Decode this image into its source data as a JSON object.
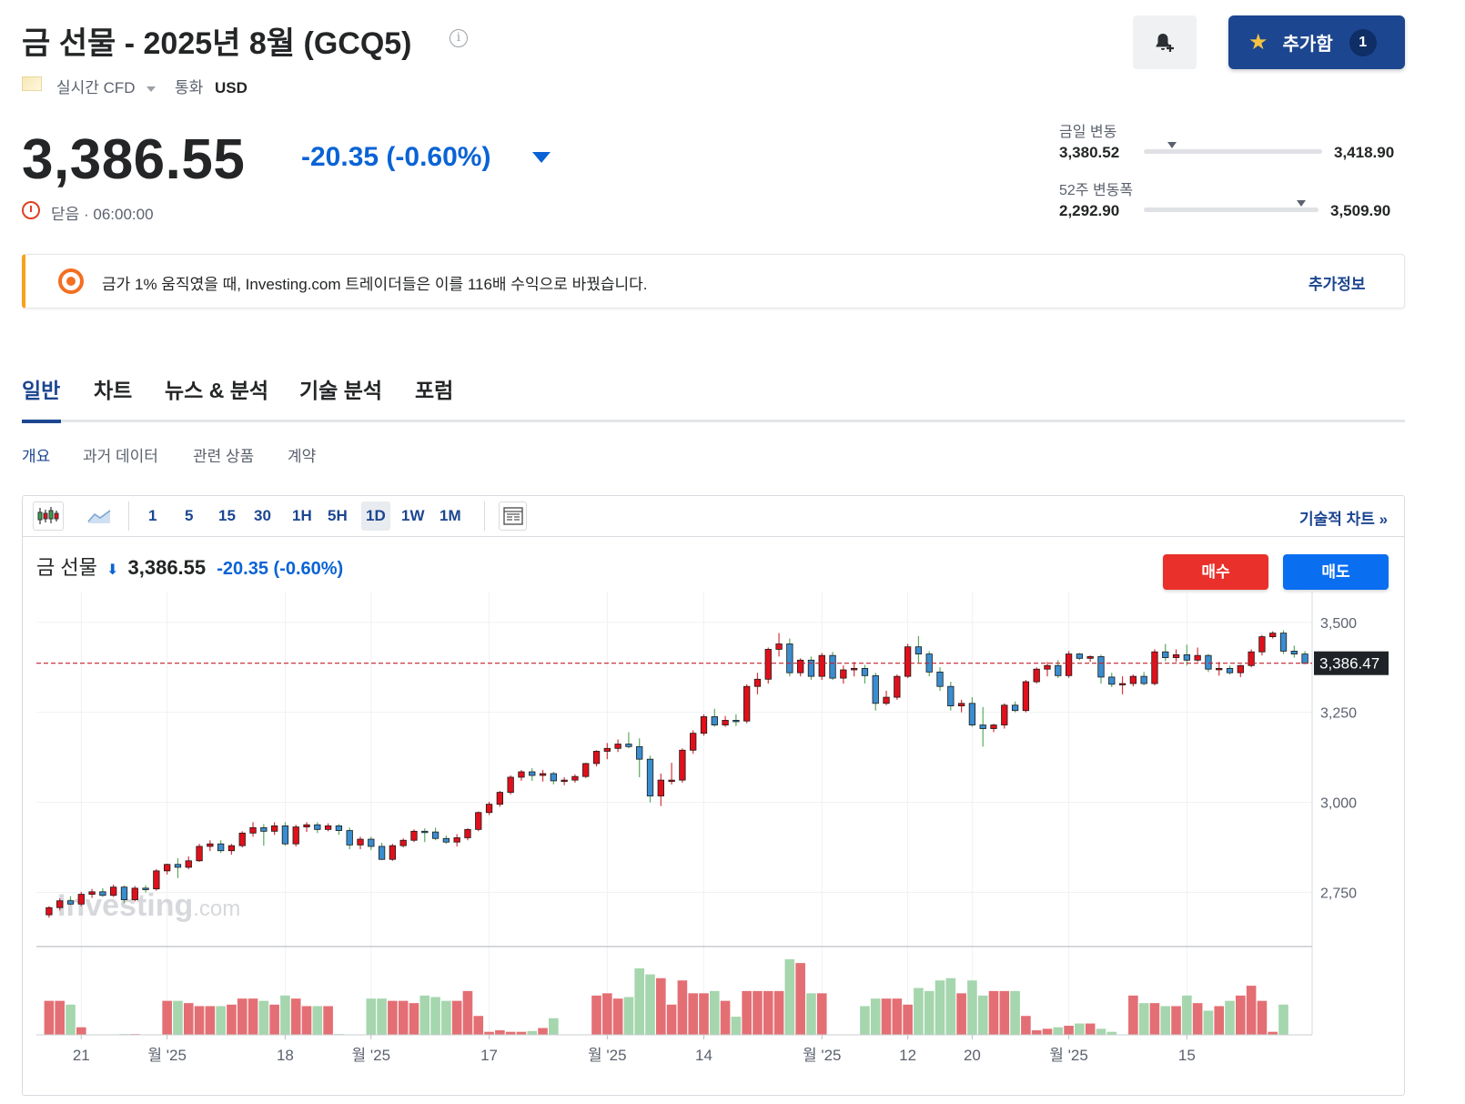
{
  "header": {
    "title": "금 선물 - 2025년 8월 (GCQ5)",
    "source": "실시간 CFD",
    "currency_label": "통화",
    "currency": "USD",
    "add_label": "추가함",
    "add_count": "1"
  },
  "quote": {
    "price": "3,386.55",
    "change": "-20.35 (-0.60%)",
    "status": "닫음 · 06:00:00",
    "direction": "down",
    "day_range": {
      "label": "금일 변동",
      "low": "3,380.52",
      "high": "3,418.90",
      "marker_fraction": 0.16
    },
    "week52_range": {
      "label": "52주 변동폭",
      "low": "2,292.90",
      "high": "3,509.90",
      "marker_fraction": 0.9
    }
  },
  "promo": {
    "text": "금가 1% 움직였을 때, Investing.com 트레이더들은 이를 116배 수익으로 바꿨습니다.",
    "link": "추가정보"
  },
  "tabs": [
    "일반",
    "차트",
    "뉴스 & 분석",
    "기술 분석",
    "포럼"
  ],
  "active_tab": "일반",
  "subtabs": [
    "개요",
    "과거 데이터",
    "관련 상품",
    "계약"
  ],
  "active_subtab": "개요",
  "chart_toolbar": {
    "timeframes": [
      "1",
      "5",
      "15",
      "30",
      "1H",
      "5H",
      "1D",
      "1W",
      "1M"
    ],
    "active_timeframe": "1D",
    "link": "기술적 차트 »"
  },
  "chart_header": {
    "name": "금 선물",
    "price": "3,386.55",
    "change": "-20.35 (-0.60%)",
    "buy": "매수",
    "sell": "매도"
  },
  "watermark": {
    "main": "Investing",
    "suffix": ".com"
  },
  "colors": {
    "up": "#e0101b",
    "down": "#3a8dcf",
    "accent": "#1c4690",
    "negative": "#0a63d6"
  },
  "chart_data": {
    "type": "candlestick",
    "ylim": [
      2600,
      3560
    ],
    "yticks": [
      "3,500",
      "3,250",
      "3,000",
      "2,750"
    ],
    "ytick_values": [
      3500,
      3250,
      3000,
      2750
    ],
    "last_price_label": "3,386.47",
    "last_price": 3386.47,
    "xtick_labels": [
      "21",
      "월 '25",
      "18",
      "월 '25",
      "17",
      "월 '25",
      "14",
      "월 '25",
      "12",
      "20",
      "월 '25",
      "15"
    ],
    "xtick_index": [
      3,
      11,
      22,
      30,
      41,
      52,
      61,
      72,
      80,
      86,
      95,
      106
    ],
    "ohlc": [
      [
        2688,
        2712,
        2680,
        2708
      ],
      [
        2708,
        2734,
        2700,
        2727
      ],
      [
        2727,
        2740,
        2715,
        2718
      ],
      [
        2718,
        2752,
        2712,
        2745
      ],
      [
        2745,
        2760,
        2735,
        2752
      ],
      [
        2752,
        2762,
        2738,
        2742
      ],
      [
        2742,
        2772,
        2738,
        2765
      ],
      [
        2765,
        2770,
        2720,
        2730
      ],
      [
        2730,
        2768,
        2725,
        2762
      ],
      [
        2762,
        2770,
        2750,
        2758
      ],
      [
        2760,
        2815,
        2755,
        2810
      ],
      [
        2810,
        2830,
        2800,
        2828
      ],
      [
        2828,
        2845,
        2790,
        2820
      ],
      [
        2820,
        2850,
        2815,
        2838
      ],
      [
        2838,
        2885,
        2835,
        2878
      ],
      [
        2878,
        2895,
        2865,
        2885
      ],
      [
        2885,
        2895,
        2860,
        2866
      ],
      [
        2866,
        2885,
        2855,
        2880
      ],
      [
        2880,
        2920,
        2875,
        2915
      ],
      [
        2915,
        2945,
        2905,
        2930
      ],
      [
        2930,
        2940,
        2880,
        2920
      ],
      [
        2920,
        2945,
        2910,
        2935
      ],
      [
        2935,
        2945,
        2880,
        2885
      ],
      [
        2885,
        2938,
        2878,
        2932
      ],
      [
        2932,
        2945,
        2918,
        2938
      ],
      [
        2938,
        2945,
        2915,
        2925
      ],
      [
        2925,
        2942,
        2920,
        2935
      ],
      [
        2935,
        2940,
        2910,
        2922
      ],
      [
        2922,
        2930,
        2870,
        2882
      ],
      [
        2882,
        2905,
        2870,
        2898
      ],
      [
        2898,
        2905,
        2868,
        2878
      ],
      [
        2878,
        2888,
        2840,
        2842
      ],
      [
        2842,
        2885,
        2838,
        2880
      ],
      [
        2880,
        2900,
        2875,
        2895
      ],
      [
        2895,
        2925,
        2890,
        2920
      ],
      [
        2920,
        2928,
        2890,
        2918
      ],
      [
        2918,
        2930,
        2895,
        2900
      ],
      [
        2900,
        2908,
        2885,
        2890
      ],
      [
        2890,
        2912,
        2878,
        2902
      ],
      [
        2902,
        2928,
        2895,
        2925
      ],
      [
        2925,
        2975,
        2920,
        2972
      ],
      [
        2972,
        3002,
        2965,
        2995
      ],
      [
        2995,
        3032,
        2988,
        3028
      ],
      [
        3028,
        3075,
        3022,
        3070
      ],
      [
        3070,
        3090,
        3060,
        3085
      ],
      [
        3085,
        3095,
        3060,
        3075
      ],
      [
        3075,
        3090,
        3058,
        3080
      ],
      [
        3080,
        3085,
        3050,
        3060
      ],
      [
        3060,
        3070,
        3048,
        3062
      ],
      [
        3062,
        3078,
        3055,
        3072
      ],
      [
        3072,
        3110,
        3068,
        3108
      ],
      [
        3108,
        3145,
        3100,
        3142
      ],
      [
        3142,
        3165,
        3120,
        3150
      ],
      [
        3150,
        3175,
        3140,
        3162
      ],
      [
        3162,
        3195,
        3150,
        3155
      ],
      [
        3155,
        3178,
        3070,
        3120
      ],
      [
        3120,
        3130,
        3000,
        3018
      ],
      [
        3018,
        3080,
        2990,
        3062
      ],
      [
        3062,
        3110,
        3050,
        3062
      ],
      [
        3062,
        3150,
        3055,
        3145
      ],
      [
        3145,
        3200,
        3135,
        3192
      ],
      [
        3192,
        3245,
        3185,
        3238
      ],
      [
        3238,
        3260,
        3210,
        3215
      ],
      [
        3215,
        3240,
        3210,
        3228
      ],
      [
        3228,
        3245,
        3212,
        3226
      ],
      [
        3226,
        3328,
        3220,
        3322
      ],
      [
        3322,
        3360,
        3300,
        3342
      ],
      [
        3342,
        3430,
        3330,
        3425
      ],
      [
        3425,
        3470,
        3405,
        3440
      ],
      [
        3440,
        3455,
        3350,
        3360
      ],
      [
        3360,
        3400,
        3350,
        3395
      ],
      [
        3395,
        3405,
        3340,
        3350
      ],
      [
        3350,
        3415,
        3340,
        3408
      ],
      [
        3408,
        3418,
        3340,
        3345
      ],
      [
        3345,
        3380,
        3330,
        3368
      ],
      [
        3368,
        3390,
        3350,
        3372
      ],
      [
        3372,
        3382,
        3330,
        3352
      ],
      [
        3352,
        3360,
        3255,
        3275
      ],
      [
        3275,
        3310,
        3270,
        3292
      ],
      [
        3292,
        3355,
        3285,
        3350
      ],
      [
        3350,
        3440,
        3345,
        3432
      ],
      [
        3432,
        3462,
        3388,
        3412
      ],
      [
        3412,
        3420,
        3350,
        3362
      ],
      [
        3362,
        3375,
        3310,
        3322
      ],
      [
        3322,
        3335,
        3255,
        3268
      ],
      [
        3268,
        3285,
        3250,
        3275
      ],
      [
        3275,
        3292,
        3210,
        3215
      ],
      [
        3215,
        3265,
        3155,
        3205
      ],
      [
        3205,
        3218,
        3195,
        3215
      ],
      [
        3215,
        3275,
        3205,
        3270
      ],
      [
        3270,
        3280,
        3250,
        3255
      ],
      [
        3255,
        3340,
        3250,
        3335
      ],
      [
        3335,
        3375,
        3330,
        3370
      ],
      [
        3370,
        3390,
        3350,
        3380
      ],
      [
        3380,
        3395,
        3345,
        3352
      ],
      [
        3352,
        3420,
        3346,
        3412
      ],
      [
        3412,
        3415,
        3395,
        3400
      ],
      [
        3400,
        3408,
        3390,
        3405
      ],
      [
        3405,
        3410,
        3330,
        3348
      ],
      [
        3348,
        3360,
        3320,
        3328
      ],
      [
        3328,
        3350,
        3300,
        3330
      ],
      [
        3330,
        3355,
        3322,
        3350
      ],
      [
        3350,
        3362,
        3325,
        3330
      ],
      [
        3330,
        3425,
        3325,
        3418
      ],
      [
        3418,
        3440,
        3392,
        3402
      ],
      [
        3402,
        3425,
        3390,
        3410
      ],
      [
        3410,
        3438,
        3380,
        3395
      ],
      [
        3395,
        3430,
        3390,
        3408
      ],
      [
        3408,
        3412,
        3362,
        3370
      ],
      [
        3370,
        3390,
        3352,
        3372
      ],
      [
        3372,
        3380,
        3355,
        3360
      ],
      [
        3360,
        3382,
        3348,
        3380
      ],
      [
        3380,
        3425,
        3375,
        3418
      ],
      [
        3418,
        3465,
        3408,
        3460
      ],
      [
        3460,
        3475,
        3455,
        3470
      ],
      [
        3470,
        3478,
        3412,
        3420
      ],
      [
        3420,
        3435,
        3402,
        3412
      ],
      [
        3412,
        3420,
        3384,
        3386
      ]
    ],
    "volume": [
      0.45,
      0.45,
      0.4,
      0.1,
      0,
      0,
      0,
      0.01,
      0.01,
      0,
      0,
      0.45,
      0.45,
      0.42,
      0.38,
      0.38,
      0.38,
      0.4,
      0.48,
      0.48,
      0.45,
      0.4,
      0.52,
      0.48,
      0.38,
      0.38,
      0.38,
      0.01,
      0,
      0,
      0.48,
      0.48,
      0.45,
      0.45,
      0.42,
      0.52,
      0.5,
      0.45,
      0.45,
      0.58,
      0.25,
      0.04,
      0.06,
      0.04,
      0.04,
      0.05,
      0.09,
      0.22,
      0,
      0,
      0,
      0.52,
      0.55,
      0.48,
      0.5,
      0.88,
      0.8,
      0.75,
      0.4,
      0.72,
      0.55,
      0.55,
      0.58,
      0.45,
      0.24,
      0.58,
      0.58,
      0.58,
      0.58,
      1.0,
      0.95,
      0.55,
      0.55,
      0,
      0,
      0,
      0.38,
      0.48,
      0.48,
      0.48,
      0.4,
      0.62,
      0.58,
      0.72,
      0.75,
      0.55,
      0.72,
      0.52,
      0.58,
      0.58,
      0.58,
      0.25,
      0.06,
      0.08,
      0.1,
      0.12,
      0.15,
      0.15,
      0.08,
      0.04,
      0,
      0.52,
      0.42,
      0.42,
      0.38,
      0.38,
      0.52,
      0.42,
      0.32,
      0.38,
      0.45,
      0.52,
      0.65,
      0.45,
      0.04,
      0.4
    ]
  }
}
